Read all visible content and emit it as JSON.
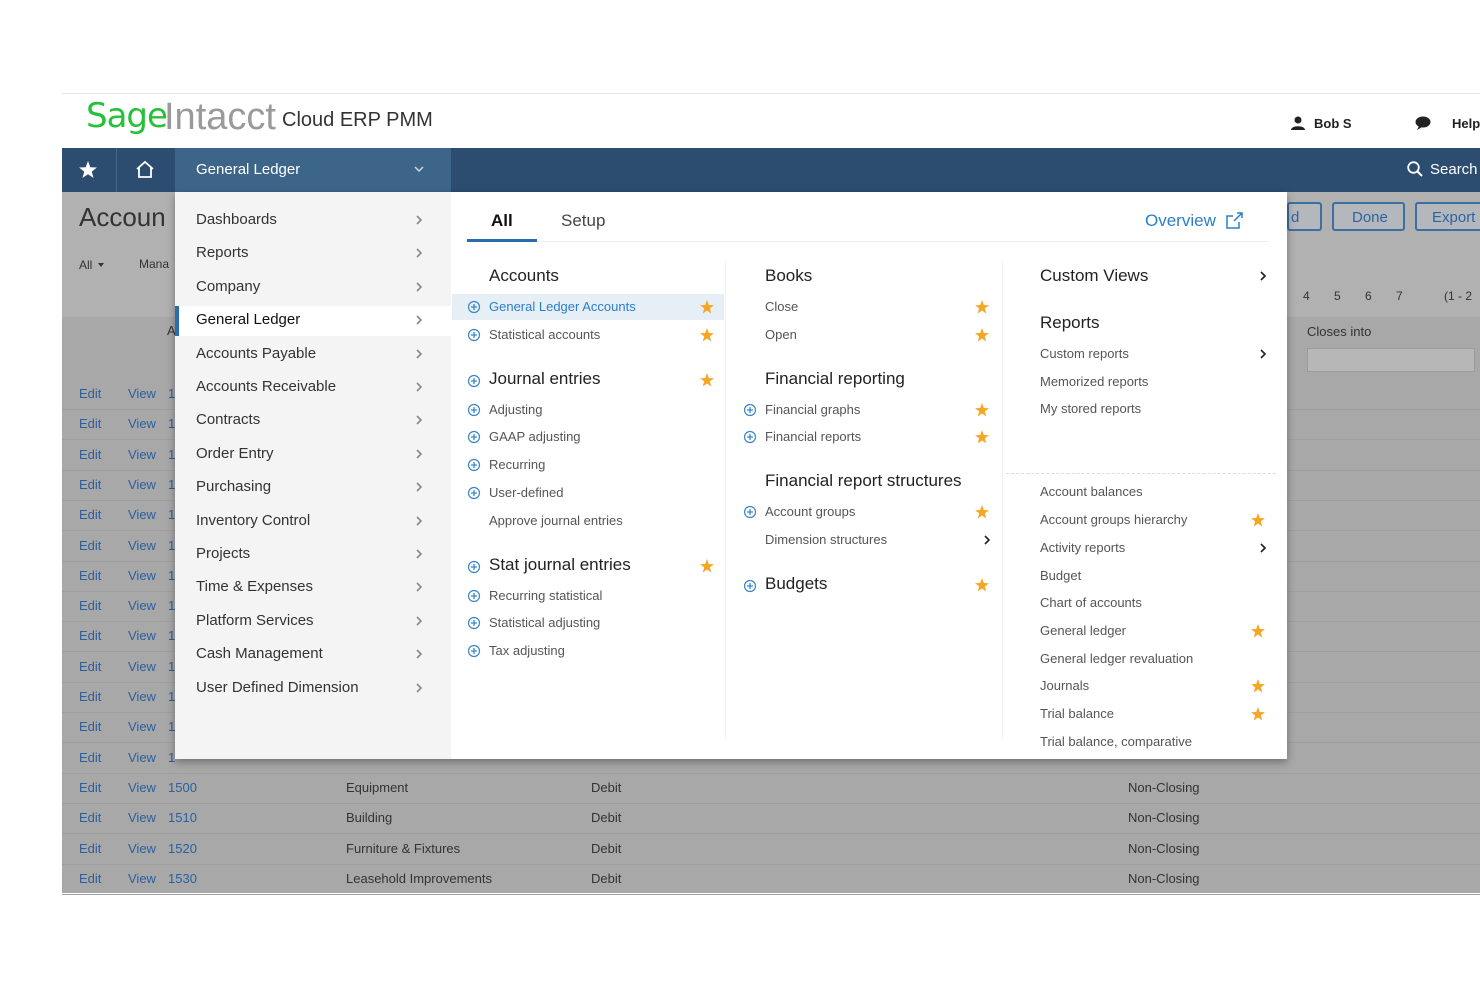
{
  "header": {
    "logo_sage": "Sage",
    "logo_intacct": "Intacct",
    "product": "Cloud ERP PMM",
    "user": "Bob S",
    "help": "Help"
  },
  "nav": {
    "module": "General Ledger",
    "search": "Search"
  },
  "background_page": {
    "title": "Accoun",
    "filter": "All",
    "manage": "Mana",
    "col_marker": "A",
    "buttons": [
      "d",
      "Done",
      "Export"
    ],
    "pages": [
      "4",
      "5",
      "6",
      "7"
    ],
    "range": "(1 - 2",
    "column": "Closes into",
    "rows": [
      {
        "edit": "Edit",
        "view": "View",
        "number": "1"
      },
      {
        "edit": "Edit",
        "view": "View",
        "number": "1"
      },
      {
        "edit": "Edit",
        "view": "View",
        "number": "1"
      },
      {
        "edit": "Edit",
        "view": "View",
        "number": "1"
      },
      {
        "edit": "Edit",
        "view": "View",
        "number": "1"
      },
      {
        "edit": "Edit",
        "view": "View",
        "number": "1"
      },
      {
        "edit": "Edit",
        "view": "View",
        "number": "1"
      },
      {
        "edit": "Edit",
        "view": "View",
        "number": "1"
      },
      {
        "edit": "Edit",
        "view": "View",
        "number": "1"
      },
      {
        "edit": "Edit",
        "view": "View",
        "number": "1"
      },
      {
        "edit": "Edit",
        "view": "View",
        "number": "1"
      },
      {
        "edit": "Edit",
        "view": "View",
        "number": "1"
      },
      {
        "edit": "Edit",
        "view": "View",
        "number": "1"
      },
      {
        "edit": "Edit",
        "view": "View",
        "number": "1500",
        "title": "Equipment",
        "type": "Debit",
        "closing": "Non-Closing"
      },
      {
        "edit": "Edit",
        "view": "View",
        "number": "1510",
        "title": "Building",
        "type": "Debit",
        "closing": "Non-Closing"
      },
      {
        "edit": "Edit",
        "view": "View",
        "number": "1520",
        "title": "Furniture & Fixtures",
        "type": "Debit",
        "closing": "Non-Closing"
      },
      {
        "edit": "Edit",
        "view": "View",
        "number": "1530",
        "title": "Leasehold Improvements",
        "type": "Debit",
        "closing": "Non-Closing"
      }
    ]
  },
  "menu": {
    "left_items": [
      "Dashboards",
      "Reports",
      "Company",
      "General Ledger",
      "Accounts Payable",
      "Accounts Receivable",
      "Contracts",
      "Order Entry",
      "Purchasing",
      "Inventory Control",
      "Projects",
      "Time & Expenses",
      "Platform Services",
      "Cash Management",
      "User Defined Dimension"
    ],
    "active_left": 3,
    "tabs": [
      "All",
      "Setup"
    ],
    "active_tab": 0,
    "overview": "Overview",
    "columns": [
      [
        {
          "title": "Accounts",
          "items": [
            {
              "label": "General Ledger Accounts",
              "plus": true,
              "star": true,
              "selected": true
            },
            {
              "label": "Statistical accounts",
              "plus": true,
              "star": true
            }
          ]
        },
        {
          "title": "Journal entries",
          "plus": true,
          "star": true,
          "items": [
            {
              "label": "Adjusting",
              "plus": true
            },
            {
              "label": "GAAP adjusting",
              "plus": true
            },
            {
              "label": "Recurring",
              "plus": true
            },
            {
              "label": "User-defined",
              "plus": true
            },
            {
              "label": "Approve journal entries"
            }
          ]
        },
        {
          "title": "Stat journal entries",
          "plus": true,
          "star": true,
          "items": [
            {
              "label": "Recurring statistical",
              "plus": true
            },
            {
              "label": "Statistical adjusting",
              "plus": true
            },
            {
              "label": "Tax adjusting",
              "plus": true
            }
          ]
        }
      ],
      [
        {
          "title": "Books",
          "items": [
            {
              "label": "Close",
              "star": true
            },
            {
              "label": "Open",
              "star": true
            }
          ]
        },
        {
          "title": "Financial reporting",
          "items": [
            {
              "label": "Financial graphs",
              "plus": true,
              "star": true
            },
            {
              "label": "Financial reports",
              "plus": true,
              "star": true
            }
          ]
        },
        {
          "title": "Financial report structures",
          "items": [
            {
              "label": "Account groups",
              "plus": true,
              "star": true
            },
            {
              "label": "Dimension structures",
              "arrow": true
            }
          ]
        },
        {
          "title": "Budgets",
          "plus": true,
          "star": true,
          "items": []
        }
      ],
      [
        {
          "title": "Custom Views",
          "arrow": true,
          "items": []
        },
        {
          "title": "Reports",
          "items": [
            {
              "label": "Custom reports",
              "arrow": true
            },
            {
              "label": "Memorized reports"
            },
            {
              "label": "My stored reports"
            }
          ]
        },
        {
          "items": [
            {
              "label": "Account balances"
            },
            {
              "label": "Account groups hierarchy",
              "star": true
            },
            {
              "label": "Activity reports",
              "arrow": true
            },
            {
              "label": "Budget"
            },
            {
              "label": "Chart of accounts"
            },
            {
              "label": "General ledger",
              "star": true
            },
            {
              "label": "General ledger revaluation"
            },
            {
              "label": "Journals",
              "star": true
            },
            {
              "label": "Trial balance",
              "star": true
            },
            {
              "label": "Trial balance, comparative"
            }
          ]
        }
      ]
    ]
  }
}
